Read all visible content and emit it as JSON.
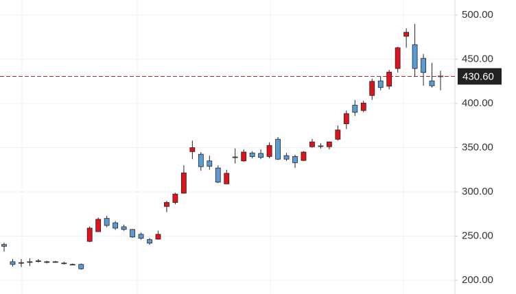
{
  "chart_data": {
    "type": "candlestick",
    "open": [
      240.5,
      221,
      220,
      221,
      222,
      221,
      221,
      219.5,
      218,
      218,
      244,
      255,
      270,
      265,
      260.5,
      257.5,
      252,
      246,
      246.5,
      283.5,
      288,
      298.5,
      345.5,
      342.5,
      335,
      327,
      309,
      339.5,
      335,
      344,
      343.5,
      340,
      359.5,
      341,
      340,
      335.5,
      351,
      352,
      351,
      359.5,
      377,
      398,
      392,
      409,
      425.5,
      419.5,
      439.5,
      476,
      466.5,
      451,
      425.5,
      431
    ],
    "high": [
      242.5,
      224,
      224,
      225,
      224,
      222,
      222,
      221,
      219,
      219,
      261,
      271,
      273,
      267,
      263,
      258,
      254,
      248,
      256,
      290,
      299,
      330,
      358,
      345,
      341,
      330,
      325,
      349,
      348,
      346,
      348,
      356,
      362,
      344,
      342,
      346,
      360,
      355,
      357,
      375,
      392,
      404,
      403,
      428,
      431,
      438,
      464,
      485,
      490,
      456,
      446,
      437
    ],
    "low": [
      232.5,
      215.5,
      215,
      216,
      220,
      219,
      220,
      218,
      217,
      212,
      243,
      255,
      260,
      257,
      256,
      248,
      246,
      240,
      246,
      277,
      286,
      298,
      337,
      324,
      325,
      310,
      309,
      332,
      334,
      338,
      337,
      338,
      336,
      335,
      327,
      335,
      350,
      349,
      348,
      358,
      371,
      386,
      390,
      404,
      415,
      416,
      435,
      463,
      430,
      420,
      418,
      415
    ],
    "close": [
      238.5,
      218,
      220,
      220.5,
      222,
      220.5,
      221,
      219.5,
      218,
      213,
      259,
      269,
      262,
      259,
      257.5,
      249,
      247.5,
      242,
      252,
      288,
      297.5,
      321.5,
      350,
      328.5,
      329,
      311,
      321,
      339.5,
      345,
      340,
      339,
      352.5,
      337,
      337,
      333,
      345,
      356.5,
      352,
      356.5,
      370,
      388.5,
      390,
      400.5,
      425,
      418,
      435.5,
      463,
      480.5,
      439.5,
      435,
      420,
      431
    ],
    "up_color": "#e0121b",
    "down_color": "#5b9bd5",
    "ylim": [
      184.5,
      517
    ],
    "yticks": [
      {
        "value": 200,
        "label": "200.00"
      },
      {
        "value": 250,
        "label": "250.00"
      },
      {
        "value": 300,
        "label": "300.00"
      },
      {
        "value": 350,
        "label": "350.00"
      },
      {
        "value": 400,
        "label": "400.00"
      },
      {
        "value": 450,
        "label": "450.00"
      },
      {
        "value": 500,
        "label": "500.00"
      }
    ],
    "grid": true,
    "price_line": {
      "value": 430.6,
      "label": "430.60",
      "color": "#a0282a"
    }
  }
}
